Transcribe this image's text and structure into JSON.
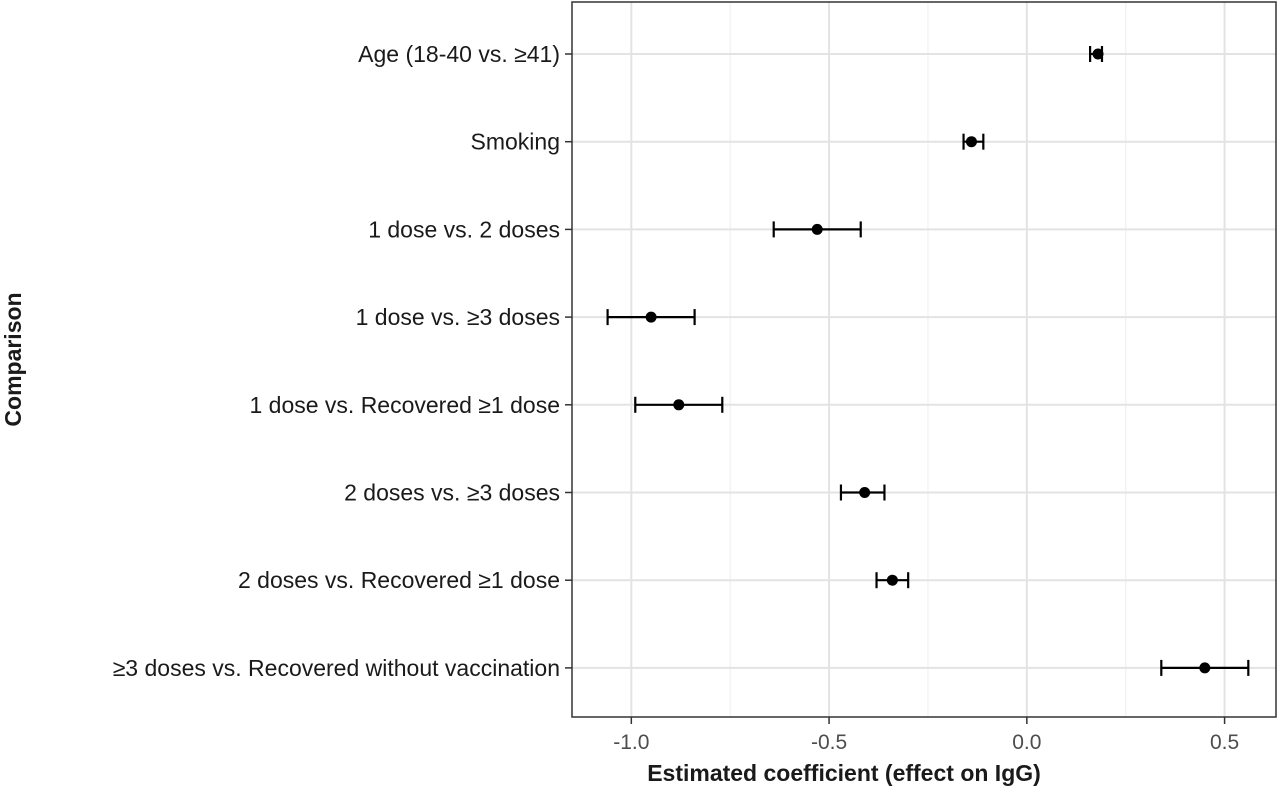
{
  "chart_data": {
    "type": "scatter",
    "subtype": "forest-plot-with-error-bars",
    "title": "",
    "xlabel": "Estimated coefficient (effect on IgG)",
    "ylabel": "Comparison",
    "xlim": [
      -1.15,
      0.63
    ],
    "xticks": [
      -1.0,
      -0.5,
      0.0,
      0.5
    ],
    "xtick_labels": [
      "-1.0",
      "-0.5",
      "0.0",
      "0.5"
    ],
    "grid": true,
    "legend": "none",
    "categories": [
      "Age (18-40 vs. ≥41)",
      "Smoking",
      "1 dose vs. 2 doses",
      "1 dose vs. ≥3 doses",
      "1 dose vs. Recovered ≥1 dose",
      "2 doses vs. ≥3 doses",
      "2 doses vs. Recovered ≥1 dose",
      "≥3 doses vs. Recovered without vaccination"
    ],
    "estimates": [
      0.18,
      -0.14,
      -0.53,
      -0.95,
      -0.88,
      -0.41,
      -0.34,
      0.45
    ],
    "ci_lower": [
      0.16,
      -0.16,
      -0.64,
      -1.06,
      -0.99,
      -0.47,
      -0.38,
      0.34
    ],
    "ci_upper": [
      0.19,
      -0.11,
      -0.42,
      -0.84,
      -0.77,
      -0.36,
      -0.3,
      0.56
    ]
  }
}
